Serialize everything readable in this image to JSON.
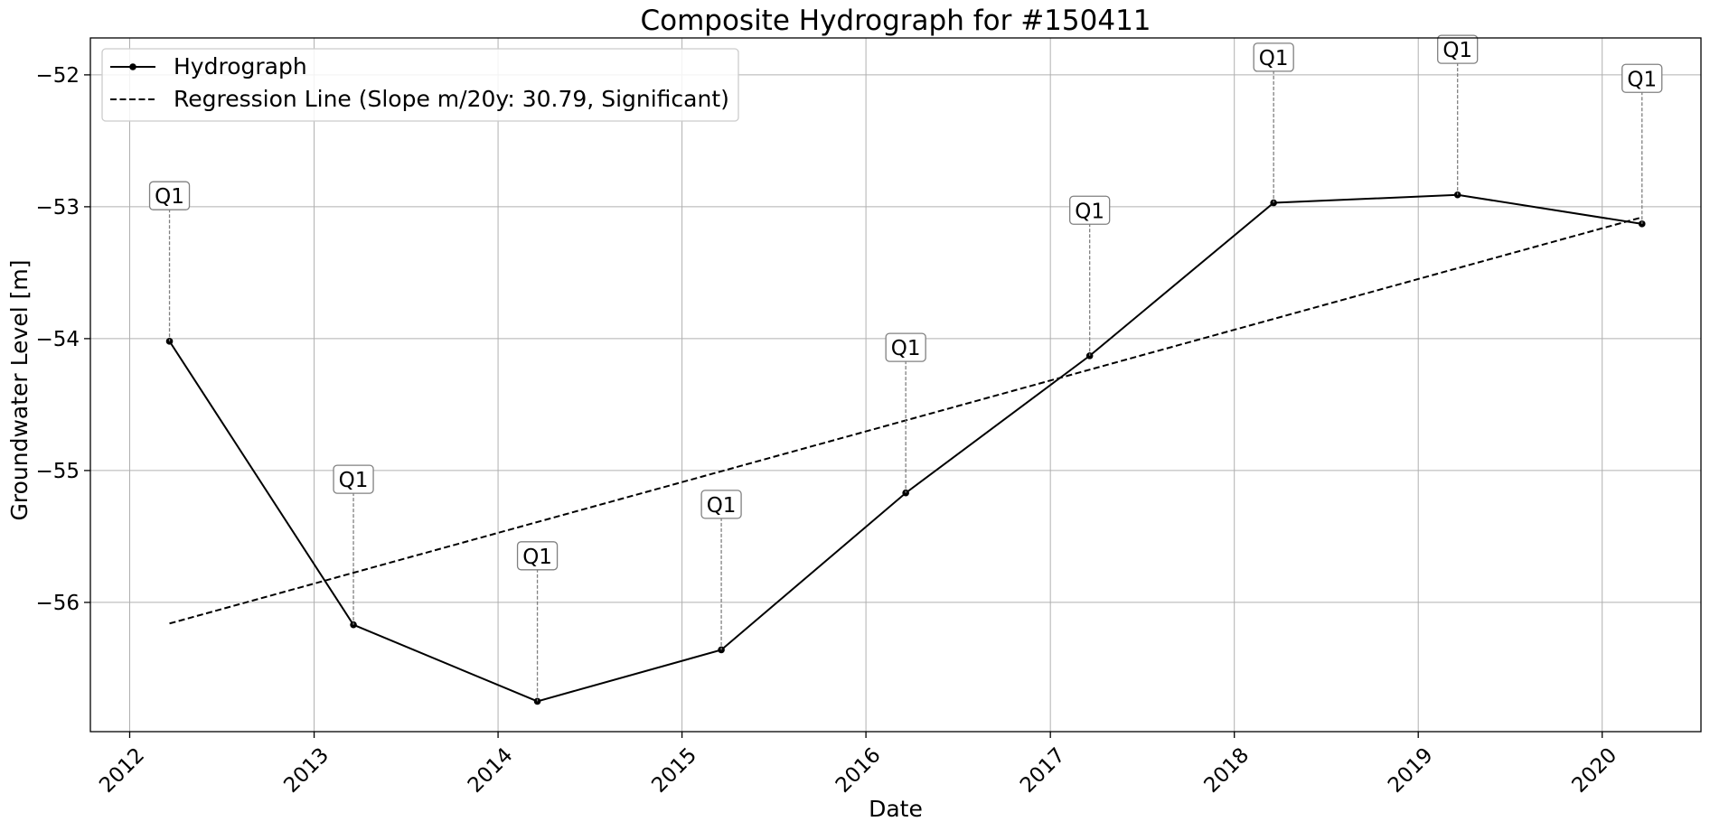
{
  "chart_data": {
    "type": "line",
    "title": "Composite Hydrograph for  #150411",
    "xlabel": "Date",
    "ylabel": "Groundwater Level [m]",
    "x_ticks": [
      "2012",
      "2013",
      "2014",
      "2015",
      "2016",
      "2017",
      "2018",
      "2019",
      "2020"
    ],
    "y_ticks": [
      -52,
      -53,
      -54,
      -55,
      -56
    ],
    "y_tick_labels": [
      "−52",
      "−53",
      "−54",
      "−55",
      "−56"
    ],
    "xlim": [
      "2011-10-15",
      "2020-07-15"
    ],
    "ylim": [
      -56.98,
      -51.72
    ],
    "grid": true,
    "legend_position": "top-left",
    "series": [
      {
        "name": "Hydrograph",
        "style": "solid-line-with-dots",
        "color": "#000000",
        "x": [
          "2012-03-20",
          "2013-03-20",
          "2014-03-20",
          "2015-03-20",
          "2016-03-20",
          "2017-03-20",
          "2018-03-20",
          "2019-03-20",
          "2020-03-20"
        ],
        "y": [
          -54.02,
          -56.17,
          -56.75,
          -56.36,
          -55.17,
          -54.13,
          -52.97,
          -52.91,
          -53.13
        ],
        "annotations": [
          "Q1",
          "Q1",
          "Q1",
          "Q1",
          "Q1",
          "Q1",
          "Q1",
          "Q1",
          "Q1"
        ]
      },
      {
        "name": "Regression Line (Slope m/20y: 30.79, Significant)",
        "style": "dashed",
        "color": "#000000",
        "x": [
          "2012-03-20",
          "2020-03-20"
        ],
        "y": [
          -56.16,
          -53.08
        ]
      }
    ]
  }
}
